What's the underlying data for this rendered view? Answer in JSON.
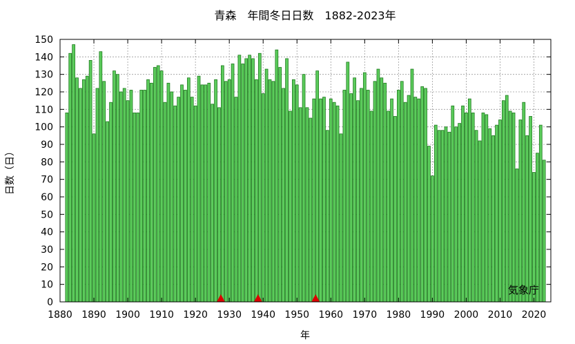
{
  "chart_data": {
    "type": "bar",
    "title": "青森　年間冬日日数　1882-2023年",
    "xlabel": "年",
    "ylabel": "日数（日）",
    "credit": "気象庁",
    "xlim": [
      1880,
      2025
    ],
    "ylim": [
      0,
      150
    ],
    "x_ticks": [
      1880,
      1890,
      1900,
      1910,
      1920,
      1930,
      1940,
      1950,
      1960,
      1970,
      1980,
      1990,
      2000,
      2010,
      2020
    ],
    "y_ticks": [
      0,
      10,
      20,
      30,
      40,
      50,
      60,
      70,
      80,
      90,
      100,
      110,
      120,
      130,
      140,
      150
    ],
    "grid": true,
    "bar_color": "#5ccc5c",
    "bar_edge_color": "#1e7a1e",
    "marker_color": "#dd0000",
    "x_start": 1882,
    "x": [
      1882,
      1883,
      1884,
      1885,
      1886,
      1887,
      1888,
      1889,
      1890,
      1891,
      1892,
      1893,
      1894,
      1895,
      1896,
      1897,
      1898,
      1899,
      1900,
      1901,
      1902,
      1903,
      1904,
      1905,
      1906,
      1907,
      1908,
      1909,
      1910,
      1911,
      1912,
      1913,
      1914,
      1915,
      1916,
      1917,
      1918,
      1919,
      1920,
      1921,
      1922,
      1923,
      1924,
      1925,
      1926,
      1927,
      1928,
      1929,
      1930,
      1931,
      1932,
      1933,
      1934,
      1935,
      1936,
      1937,
      1938,
      1939,
      1940,
      1941,
      1942,
      1943,
      1944,
      1945,
      1946,
      1947,
      1948,
      1949,
      1950,
      1951,
      1952,
      1953,
      1954,
      1955,
      1956,
      1957,
      1958,
      1959,
      1960,
      1961,
      1962,
      1963,
      1964,
      1965,
      1966,
      1967,
      1968,
      1969,
      1970,
      1971,
      1972,
      1973,
      1974,
      1975,
      1976,
      1977,
      1978,
      1979,
      1980,
      1981,
      1982,
      1983,
      1984,
      1985,
      1986,
      1987,
      1988,
      1989,
      1990,
      1991,
      1992,
      1993,
      1994,
      1995,
      1996,
      1997,
      1998,
      1999,
      2000,
      2001,
      2002,
      2003,
      2004,
      2005,
      2006,
      2007,
      2008,
      2009,
      2010,
      2011,
      2012,
      2013,
      2014,
      2015,
      2016,
      2017,
      2018,
      2019,
      2020,
      2021,
      2022,
      2023
    ],
    "values": [
      108,
      142,
      147,
      128,
      122,
      127,
      129,
      138,
      96,
      122,
      143,
      126,
      103,
      114,
      132,
      130,
      120,
      122,
      115,
      121,
      108,
      108,
      121,
      121,
      127,
      125,
      134,
      135,
      132,
      114,
      125,
      120,
      112,
      117,
      124,
      121,
      128,
      117,
      112,
      129,
      124,
      124,
      125,
      113,
      127,
      111,
      135,
      126,
      127,
      136,
      117,
      141,
      136,
      139,
      141,
      139,
      127,
      142,
      119,
      133,
      127,
      126,
      144,
      134,
      122,
      139,
      109,
      127,
      124,
      111,
      130,
      111,
      105,
      116,
      132,
      116,
      117,
      98,
      116,
      114,
      112,
      96,
      121,
      137,
      119,
      128,
      115,
      122,
      131,
      121,
      109,
      126,
      133,
      128,
      125,
      109,
      116,
      106,
      121,
      126,
      114,
      118,
      133,
      117,
      116,
      123,
      122,
      89,
      72,
      101,
      98,
      98,
      100,
      97,
      112,
      100,
      102,
      112,
      108,
      116,
      108,
      98,
      92,
      108,
      107,
      99,
      95,
      101,
      104,
      115,
      118,
      109,
      108,
      76,
      104,
      114,
      95,
      106,
      74,
      85,
      101,
      81
    ],
    "markers": [
      1928,
      1939,
      1956
    ]
  }
}
